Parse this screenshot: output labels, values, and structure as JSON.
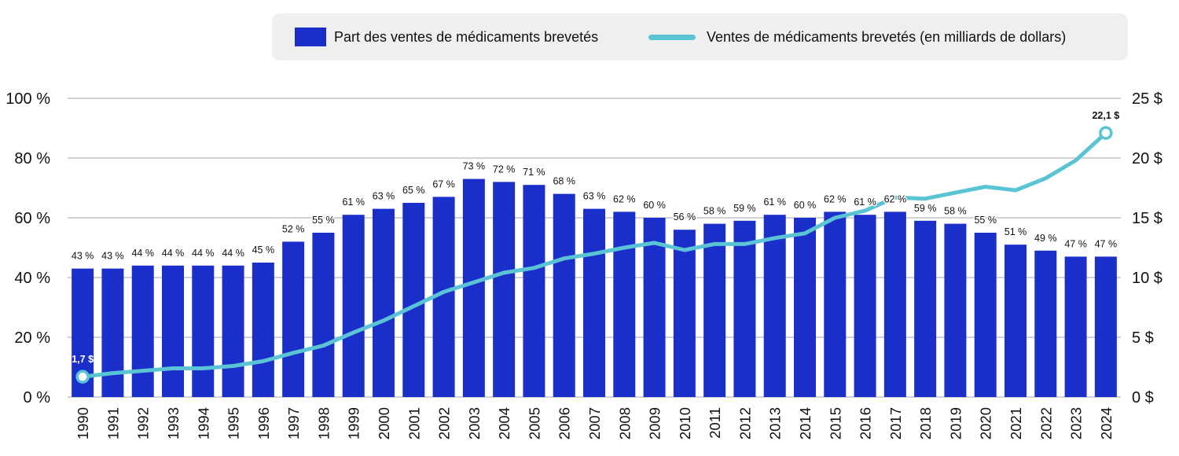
{
  "chart_data": {
    "type": "bar+line",
    "categories": [
      "1990",
      "1991",
      "1992",
      "1993",
      "1994",
      "1995",
      "1996",
      "1997",
      "1998",
      "1999",
      "2000",
      "2001",
      "2002",
      "2003",
      "2004",
      "2005",
      "2006",
      "2007",
      "2008",
      "2009",
      "2010",
      "2011",
      "2012",
      "2013",
      "2014",
      "2015",
      "2016",
      "2017",
      "2018",
      "2019",
      "2020",
      "2021",
      "2022",
      "2023",
      "2024"
    ],
    "series": [
      {
        "name": "Part des ventes de médicaments brevetés",
        "type": "bar",
        "axis": "left",
        "values": [
          43,
          43,
          44,
          44,
          44,
          44,
          45,
          52,
          55,
          61,
          63,
          65,
          67,
          73,
          72,
          71,
          68,
          63,
          62,
          60,
          56,
          58,
          59,
          61,
          60,
          62,
          61,
          62,
          59,
          58,
          55,
          51,
          49,
          47,
          47
        ]
      },
      {
        "name": "Ventes de médicaments brevetés (en milliards de dollars)",
        "type": "line",
        "axis": "right",
        "values": [
          1.7,
          2.0,
          2.2,
          2.4,
          2.4,
          2.6,
          3.0,
          3.7,
          4.3,
          5.4,
          6.4,
          7.6,
          8.8,
          9.6,
          10.4,
          10.8,
          11.6,
          12.0,
          12.5,
          12.9,
          12.3,
          12.8,
          12.8,
          13.3,
          13.7,
          15.0,
          15.6,
          16.7,
          16.6,
          17.1,
          17.6,
          17.3,
          18.3,
          19.8,
          22.1
        ]
      }
    ],
    "bar_labels": [
      "43 %",
      "43 %",
      "44 %",
      "44 %",
      "44 %",
      "44 %",
      "45 %",
      "52 %",
      "55 %",
      "61 %",
      "63 %",
      "65 %",
      "67 %",
      "73 %",
      "72 %",
      "71 %",
      "68 %",
      "63 %",
      "62 %",
      "60 %",
      "56 %",
      "58 %",
      "59 %",
      "61 %",
      "60 %",
      "62 %",
      "61 %",
      "62 %",
      "59 %",
      "58 %",
      "55 %",
      "51 %",
      "49 %",
      "47 %",
      "47 %"
    ],
    "line_annotations": [
      {
        "index": 0,
        "text": "1,7 $"
      },
      {
        "index": 34,
        "text": "22,1 $"
      }
    ],
    "y_left": {
      "ylim": [
        0,
        100
      ],
      "ticks": [
        0,
        20,
        40,
        60,
        80,
        100
      ],
      "tick_labels": [
        "0 %",
        "20 %",
        "40 %",
        "60 %",
        "80 %",
        "100 %"
      ]
    },
    "y_right": {
      "ylim": [
        0,
        25
      ],
      "ticks": [
        0,
        5,
        10,
        15,
        20,
        25
      ],
      "tick_labels": [
        "0 $",
        "5 $",
        "10 $",
        "15 $",
        "20 $",
        "25 $"
      ]
    },
    "grid": true,
    "legend_position": "top",
    "colors": {
      "bar": "#1a2fc9",
      "line": "#5bc4d4",
      "grid": "#c4c4c4",
      "legend_bg": "#efefef",
      "text": "#111111"
    }
  },
  "legend": {
    "bar_label": "Part des ventes de médicaments brevetés",
    "line_label": "Ventes de médicaments brevetés (en milliards de dollars)"
  }
}
